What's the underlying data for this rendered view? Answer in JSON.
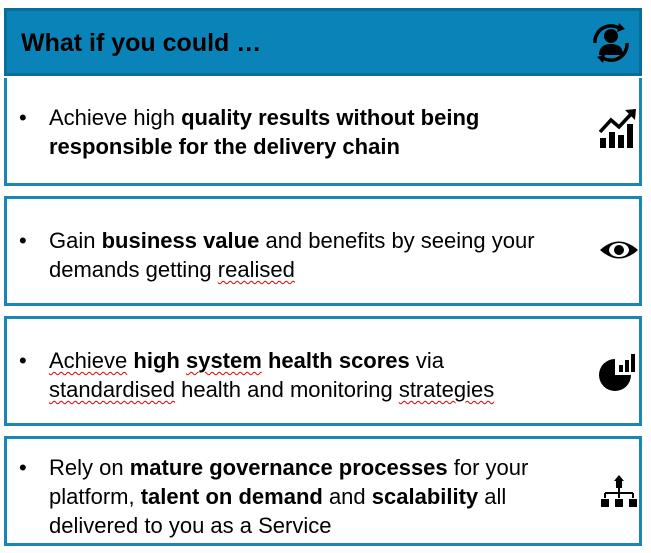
{
  "header": {
    "title": "What if you could …",
    "icon": "user-sync-icon"
  },
  "bullet_char": "•",
  "cards": [
    {
      "icon": "growth-chart-icon",
      "s1": "Achieve high ",
      "b1": "quality results without being responsible for the delivery chain"
    },
    {
      "icon": "eye-icon",
      "s1": "Gain ",
      "b1": "business value",
      "s2": " and benefits by seeing your demands getting ",
      "s3": "realised"
    },
    {
      "icon": "pie-bars-icon",
      "s1": "Achieve",
      "s2": " ",
      "b1": "high",
      "s3": " ",
      "b2": "system",
      "s4": " ",
      "b3": "health scores",
      "s5": " via ",
      "s6": "standardised",
      "s7": " health and monitoring ",
      "s8": "strategies"
    },
    {
      "icon": "org-chart-icon",
      "s1": "Rely on ",
      "b1": "mature governance processes",
      "s2": " for your platform, ",
      "b2": "talent on demand",
      "s3": " and ",
      "b3": "scalability",
      "s4": " all delivered to you as a Service"
    }
  ]
}
